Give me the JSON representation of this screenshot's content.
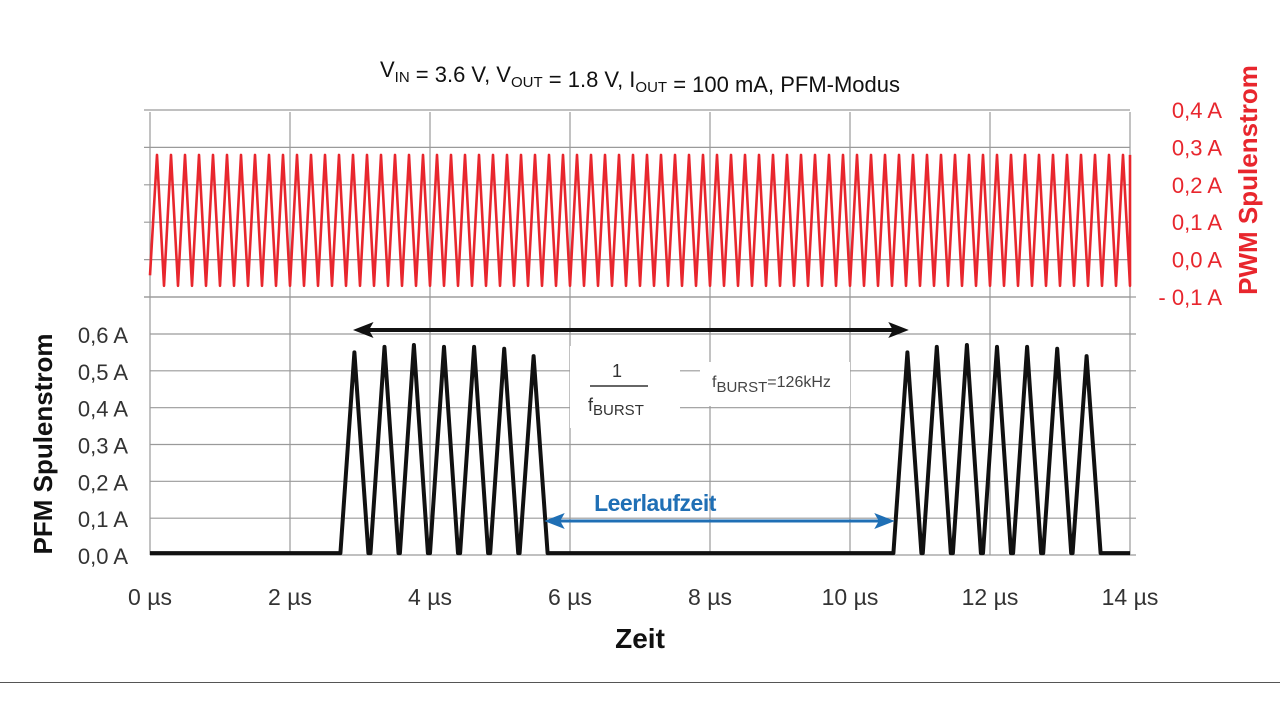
{
  "chart_data": {
    "type": "line",
    "title": {
      "parts": [
        {
          "text": "V",
          "sub": "IN"
        },
        {
          "text": " = 3.6 V, V",
          "sub": "OUT"
        },
        {
          "text": " = 1.8 V, I",
          "sub": "OUT"
        },
        {
          "text": " = 100 mA, PFM-Modus",
          "sub": ""
        }
      ]
    },
    "xlabel": "Zeit",
    "x_ticks": [
      {
        "value": 0,
        "label": "0 µs"
      },
      {
        "value": 2,
        "label": "2 µs"
      },
      {
        "value": 4,
        "label": "4 µs"
      },
      {
        "value": 6,
        "label": "6 µs"
      },
      {
        "value": 8,
        "label": "8 µs"
      },
      {
        "value": 10,
        "label": "10 µs"
      },
      {
        "value": 12,
        "label": "12 µs"
      },
      {
        "value": 14,
        "label": "14 µs"
      }
    ],
    "xlim": [
      0,
      14
    ],
    "grid": true,
    "left_axis": {
      "label": "PFM Spulenstrom",
      "ylim": [
        0,
        0.6
      ],
      "ticks": [
        {
          "value": 0.6,
          "label": "0,6 A"
        },
        {
          "value": 0.5,
          "label": "0,5 A"
        },
        {
          "value": 0.4,
          "label": "0,4 A"
        },
        {
          "value": 0.3,
          "label": "0,3 A"
        },
        {
          "value": 0.2,
          "label": "0,2 A"
        },
        {
          "value": 0.1,
          "label": "0,1 A"
        },
        {
          "value": 0.0,
          "label": "0,0 A"
        }
      ]
    },
    "right_axis": {
      "label": "PWM Spulenstrom",
      "ylim": [
        -0.1,
        0.4
      ],
      "ticks": [
        {
          "value": 0.4,
          "label": "0,4 A"
        },
        {
          "value": 0.3,
          "label": "0,3 A"
        },
        {
          "value": 0.2,
          "label": "0,2 A"
        },
        {
          "value": 0.1,
          "label": "0,1 A"
        },
        {
          "value": 0.0,
          "label": "0,0 A"
        },
        {
          "value": -0.1,
          "label": "- 0,1 A"
        }
      ]
    },
    "series": [
      {
        "axis": "right",
        "color": "#e8262d",
        "waveform": "triangle",
        "x_start": 0,
        "x_end": 14,
        "period": 0.2,
        "y_min": -0.07,
        "y_max": 0.28
      },
      {
        "axis": "left",
        "color": "#111111",
        "waveform": "burst",
        "baseline": 0.005,
        "bursts": [
          {
            "peaks": [
              {
                "start": 2.72,
                "peak": 2.92,
                "end": 3.12,
                "value": 0.55
              },
              {
                "start": 3.15,
                "peak": 3.35,
                "end": 3.55,
                "value": 0.565
              },
              {
                "start": 3.57,
                "peak": 3.77,
                "end": 3.97,
                "value": 0.57
              },
              {
                "start": 4.0,
                "peak": 4.2,
                "end": 4.4,
                "value": 0.565
              },
              {
                "start": 4.43,
                "peak": 4.63,
                "end": 4.83,
                "value": 0.565
              },
              {
                "start": 4.86,
                "peak": 5.06,
                "end": 5.26,
                "value": 0.56
              },
              {
                "start": 5.28,
                "peak": 5.48,
                "end": 5.68,
                "value": 0.54
              }
            ]
          },
          {
            "peaks": [
              {
                "start": 10.62,
                "peak": 10.82,
                "end": 11.02,
                "value": 0.55
              },
              {
                "start": 11.04,
                "peak": 11.24,
                "end": 11.44,
                "value": 0.565
              },
              {
                "start": 11.47,
                "peak": 11.67,
                "end": 11.87,
                "value": 0.57
              },
              {
                "start": 11.9,
                "peak": 12.1,
                "end": 12.3,
                "value": 0.565
              },
              {
                "start": 12.33,
                "peak": 12.53,
                "end": 12.73,
                "value": 0.565
              },
              {
                "start": 12.76,
                "peak": 12.96,
                "end": 13.16,
                "value": 0.56
              },
              {
                "start": 13.18,
                "peak": 13.38,
                "end": 13.58,
                "value": 0.54
              }
            ]
          }
        ]
      }
    ],
    "annotations": {
      "period_arrow": {
        "x_from": 2.92,
        "x_to": 10.82,
        "y": 0.605,
        "color": "#111111"
      },
      "fraction": {
        "numerator": "1",
        "denominator": {
          "text": "f",
          "sub": "BURST"
        }
      },
      "frequency": {
        "text": "f",
        "sub": "BURST",
        "suffix": "=126kHz"
      },
      "idle_arrow": {
        "x_from": 5.68,
        "x_to": 10.62,
        "y": 0.095,
        "color": "#1f6fb5",
        "label": "Leerlaufzeit"
      }
    }
  }
}
